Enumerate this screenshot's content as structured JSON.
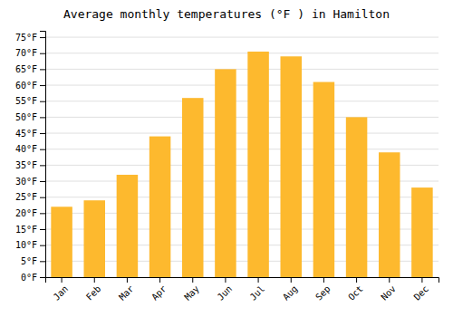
{
  "chart_data": {
    "type": "bar",
    "title": "Average monthly temperatures (°F ) in Hamilton",
    "categories": [
      "Jan",
      "Feb",
      "Mar",
      "Apr",
      "May",
      "Jun",
      "Jul",
      "Aug",
      "Sep",
      "Oct",
      "Nov",
      "Dec"
    ],
    "values": [
      22,
      24,
      32,
      44,
      56,
      65,
      70.5,
      69,
      61,
      50,
      39,
      28
    ],
    "color": "#FDB92E",
    "ylim": [
      0,
      77
    ],
    "yticks": [
      {
        "value": 0,
        "label": "0°F"
      },
      {
        "value": 5,
        "label": "5°F"
      },
      {
        "value": 10,
        "label": "10°F"
      },
      {
        "value": 15,
        "label": "15°F"
      },
      {
        "value": 20,
        "label": "20°F"
      },
      {
        "value": 25,
        "label": "25°F"
      },
      {
        "value": 30,
        "label": "30°F"
      },
      {
        "value": 35,
        "label": "35°F"
      },
      {
        "value": 40,
        "label": "40°F"
      },
      {
        "value": 45,
        "label": "45°F"
      },
      {
        "value": 50,
        "label": "50°F"
      },
      {
        "value": 55,
        "label": "55°F"
      },
      {
        "value": 60,
        "label": "60°F"
      },
      {
        "value": 65,
        "label": "65°F"
      },
      {
        "value": 70,
        "label": "70°F"
      },
      {
        "value": 75,
        "label": "75°F"
      }
    ],
    "grid": true
  }
}
